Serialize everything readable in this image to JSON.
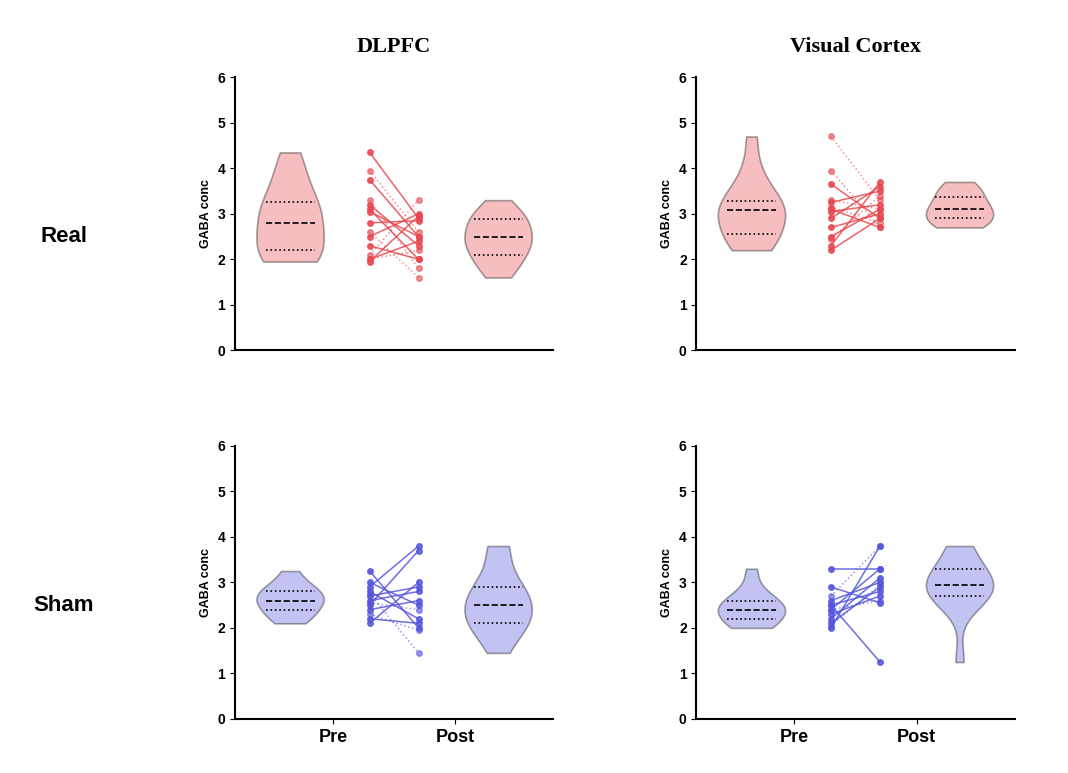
{
  "column_titles": [
    "DLPFC",
    "Visual Cortex"
  ],
  "row_labels": [
    "Real",
    "Sham"
  ],
  "chart_data": [
    {
      "type": "violin",
      "ylabel": "GABA conc",
      "categories": [
        "Pre",
        "Post"
      ],
      "tick_labels": "y",
      "color": "#e8474f",
      "ylim": [
        0,
        6
      ],
      "yticks": [
        0,
        1,
        2,
        3,
        4,
        5,
        6
      ],
      "series": [
        {
          "line_style": "solid",
          "values": [
            [
              4.35,
              2.9
            ],
            [
              3.75,
              2.5
            ],
            [
              3.2,
              2.3
            ],
            [
              3.1,
              2.0
            ],
            [
              3.05,
              2.5
            ],
            [
              2.8,
              2.85
            ],
            [
              2.5,
              3.0
            ],
            [
              2.3,
              2.0
            ],
            [
              2.0,
              2.4
            ],
            [
              1.95,
              2.95
            ]
          ]
        },
        {
          "line_style": "dotted",
          "values": [
            [
              3.95,
              2.6
            ],
            [
              3.3,
              1.8
            ],
            [
              2.6,
              1.6
            ],
            [
              2.1,
              3.3
            ],
            [
              2.0,
              2.2
            ]
          ]
        }
      ]
    },
    {
      "type": "violin",
      "ylabel": "GABA conc",
      "categories": [
        "Pre",
        "Post"
      ],
      "tick_labels": "y",
      "color": "#e8474f",
      "ylim": [
        0,
        6
      ],
      "yticks": [
        0,
        1,
        2,
        3,
        4,
        5,
        6
      ],
      "series": [
        {
          "line_style": "solid",
          "values": [
            [
              3.65,
              2.9
            ],
            [
              3.25,
              3.5
            ],
            [
              3.1,
              2.7
            ],
            [
              3.05,
              3.2
            ],
            [
              2.9,
              3.6
            ],
            [
              2.7,
              3.0
            ],
            [
              2.5,
              3.1
            ],
            [
              2.3,
              3.7
            ],
            [
              2.2,
              2.9
            ]
          ]
        },
        {
          "line_style": "dotted",
          "values": [
            [
              4.7,
              3.3
            ],
            [
              3.95,
              2.7
            ],
            [
              3.3,
              3.1
            ],
            [
              3.15,
              2.8
            ],
            [
              2.45,
              3.4
            ]
          ]
        }
      ]
    },
    {
      "type": "violin",
      "ylabel": "GABA conc",
      "categories": [
        "Pre",
        "Post"
      ],
      "tick_labels": true,
      "color": "#5555dd",
      "ylim": [
        0,
        6
      ],
      "yticks": [
        0,
        1,
        2,
        3,
        4,
        5,
        6
      ],
      "series": [
        {
          "line_style": "solid",
          "values": [
            [
              3.25,
              2.0
            ],
            [
              3.0,
              2.5
            ],
            [
              2.9,
              3.8
            ],
            [
              2.8,
              2.2
            ],
            [
              2.7,
              2.9
            ],
            [
              2.6,
              2.8
            ],
            [
              2.5,
              3.7
            ],
            [
              2.4,
              2.6
            ],
            [
              2.2,
              2.1
            ],
            [
              2.1,
              3.0
            ]
          ]
        },
        {
          "line_style": "dotted",
          "values": [
            [
              2.75,
              1.45
            ],
            [
              2.55,
              2.4
            ],
            [
              2.3,
              1.95
            ]
          ]
        }
      ]
    },
    {
      "type": "violin",
      "ylabel": "GABA conc",
      "categories": [
        "Pre",
        "Post"
      ],
      "tick_labels": true,
      "color": "#5555dd",
      "ylim": [
        0,
        6
      ],
      "yticks": [
        0,
        1,
        2,
        3,
        4,
        5,
        6
      ],
      "series": [
        {
          "line_style": "solid",
          "values": [
            [
              3.3,
              3.3
            ],
            [
              2.9,
              2.55
            ],
            [
              2.6,
              3.0
            ],
            [
              2.5,
              2.8
            ],
            [
              2.4,
              3.3
            ],
            [
              2.3,
              2.7
            ],
            [
              2.2,
              3.1
            ],
            [
              2.1,
              2.9
            ],
            [
              2.0,
              3.8
            ],
            [
              2.5,
              1.25
            ]
          ]
        },
        {
          "line_style": "dotted",
          "values": [
            [
              2.7,
              3.8
            ],
            [
              2.4,
              2.6
            ],
            [
              2.05,
              2.95
            ]
          ]
        }
      ]
    }
  ]
}
